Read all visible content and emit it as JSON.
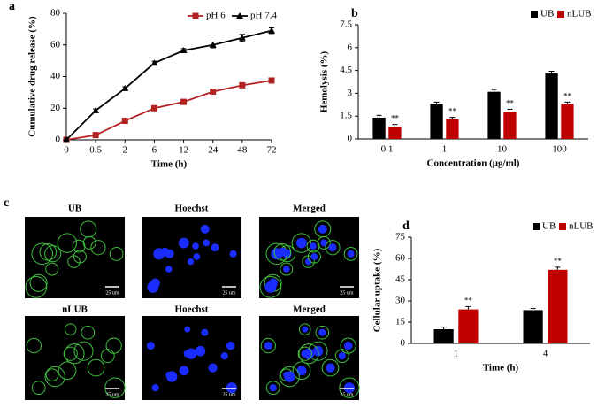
{
  "chart_data": [
    {
      "type": "line",
      "panel_label": "a",
      "x_label": "Time (h)",
      "y_label": "Cumulative drug release (%)",
      "categories": [
        "0",
        "0.5",
        "2",
        "6",
        "12",
        "24",
        "48",
        "72"
      ],
      "ylim": [
        0,
        80
      ],
      "yticks": [
        0,
        20,
        40,
        60,
        80
      ],
      "grid": false,
      "legend": "upper right",
      "series": [
        {
          "name": "pH 6",
          "color": "#b22222",
          "marker": "square",
          "values": [
            0,
            3,
            12,
            20,
            24,
            30.5,
            34.5,
            37.5
          ],
          "errors": [
            0,
            0.8,
            1,
            1,
            1,
            1,
            1.2,
            1.5
          ]
        },
        {
          "name": "pH 7.4",
          "color": "#000000",
          "marker": "triangle",
          "values": [
            0,
            18.5,
            32.5,
            48.5,
            56.5,
            60,
            64.5,
            69
          ],
          "errors": [
            0,
            1,
            1,
            1.2,
            1.2,
            1.8,
            2.2,
            1.8
          ]
        }
      ]
    },
    {
      "type": "bar",
      "panel_label": "b",
      "x_label": "Concentration  (μg/ml)",
      "y_label": "Hemolysis (%)",
      "categories": [
        "0.1",
        "1",
        "10",
        "100"
      ],
      "ylim": [
        0,
        7.5
      ],
      "yticks": [
        0,
        1.5,
        3,
        4.5,
        6,
        7.5
      ],
      "grid": false,
      "legend": "top right",
      "series": [
        {
          "name": "UB",
          "color": "#000000",
          "values": [
            1.4,
            2.3,
            3.1,
            4.3
          ],
          "errors": [
            0.15,
            0.12,
            0.15,
            0.15
          ]
        },
        {
          "name": "nLUB",
          "color": "#c00000",
          "values": [
            0.8,
            1.3,
            1.8,
            2.3
          ],
          "errors": [
            0.15,
            0.12,
            0.15,
            0.12
          ],
          "annotations": [
            "**",
            "**",
            "**",
            "**"
          ]
        }
      ]
    },
    {
      "type": "bar",
      "panel_label": "d",
      "x_label": "Time (h)",
      "y_label": "Cellular uptake (%)",
      "categories": [
        "1",
        "4"
      ],
      "ylim": [
        0,
        75
      ],
      "yticks": [
        0,
        15,
        30,
        45,
        60,
        75
      ],
      "grid": false,
      "legend": "top right",
      "series": [
        {
          "name": "UB",
          "color": "#000000",
          "values": [
            10,
            23.5
          ],
          "errors": [
            1.5,
            1.2
          ]
        },
        {
          "name": "nLUB",
          "color": "#c00000",
          "values": [
            24,
            52
          ],
          "errors": [
            2,
            1.8
          ],
          "annotations": [
            "**",
            "**"
          ]
        }
      ]
    }
  ],
  "micrographs": {
    "panel_label": "c",
    "scale_bar": "25 um",
    "rows": [
      {
        "titles": [
          "UB",
          "Hoechst",
          "Merged"
        ]
      },
      {
        "titles": [
          "nLUB",
          "Hoechst",
          "Merged"
        ]
      }
    ]
  }
}
